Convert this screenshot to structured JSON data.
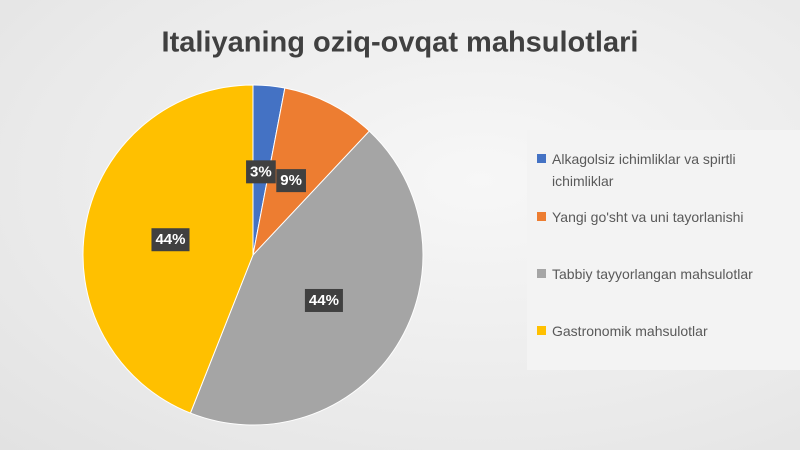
{
  "chart_data": {
    "type": "pie",
    "title": "Italiyaning oziq-ovqat mahsulotlari",
    "categories": [
      "Alkagolsiz ichimliklar va spirtli ichimliklar",
      "Yangi go'sht va uni tayorlanishi",
      "Tabbiy tayyorlangan mahsulotlar",
      "Gastronomik mahsulotlar"
    ],
    "values": [
      3,
      9,
      44,
      44
    ],
    "value_labels": [
      "3%",
      "9%",
      "44%",
      "44%"
    ],
    "colors": [
      "#4472c4",
      "#ed7d31",
      "#a5a5a5",
      "#ffc000"
    ],
    "legend": "right"
  }
}
